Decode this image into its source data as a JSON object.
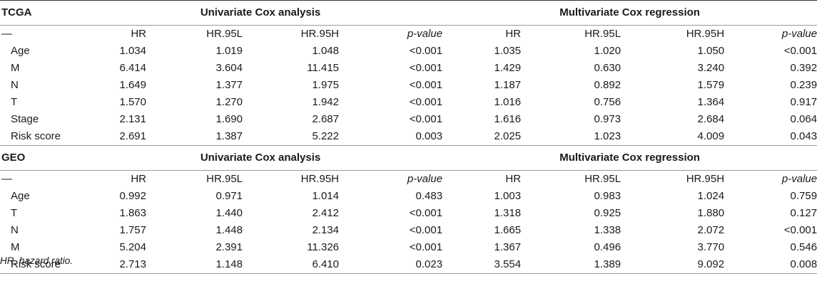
{
  "sections": [
    {
      "name": "TCGA",
      "group_left": "Univariate Cox analysis",
      "group_right": "Multivariate Cox regression",
      "header": [
        "—",
        "HR",
        "HR.95L",
        "HR.95H",
        "p-value",
        "HR",
        "HR.95L",
        "HR.95H",
        "p-value"
      ],
      "rows": [
        [
          "Age",
          "1.034",
          "1.019",
          "1.048",
          "<0.001",
          "1.035",
          "1.020",
          "1.050",
          "<0.001"
        ],
        [
          "M",
          "6.414",
          "3.604",
          "11.415",
          "<0.001",
          "1.429",
          "0.630",
          "3.240",
          "0.392"
        ],
        [
          "N",
          "1.649",
          "1.377",
          "1.975",
          "<0.001",
          "1.187",
          "0.892",
          "1.579",
          "0.239"
        ],
        [
          "T",
          "1.570",
          "1.270",
          "1.942",
          "<0.001",
          "1.016",
          "0.756",
          "1.364",
          "0.917"
        ],
        [
          "Stage",
          "2.131",
          "1.690",
          "2.687",
          "<0.001",
          "1.616",
          "0.973",
          "2.684",
          "0.064"
        ],
        [
          "Risk score",
          "2.691",
          "1.387",
          "5.222",
          "0.003",
          "2.025",
          "1.023",
          "4.009",
          "0.043"
        ]
      ]
    },
    {
      "name": "GEO",
      "group_left": "Univariate Cox analysis",
      "group_right": "Multivariate Cox regression",
      "header": [
        "—",
        "HR",
        "HR.95L",
        "HR.95H",
        "p-value",
        "HR",
        "HR.95L",
        "HR.95H",
        "p-value"
      ],
      "rows": [
        [
          "Age",
          "0.992",
          "0.971",
          "1.014",
          "0.483",
          "1.003",
          "0.983",
          "1.024",
          "0.759"
        ],
        [
          "T",
          "1.863",
          "1.440",
          "2.412",
          "<0.001",
          "1.318",
          "0.925",
          "1.880",
          "0.127"
        ],
        [
          "N",
          "1.757",
          "1.448",
          "2.134",
          "<0.001",
          "1.665",
          "1.338",
          "2.072",
          "<0.001"
        ],
        [
          "M",
          "5.204",
          "2.391",
          "11.326",
          "<0.001",
          "1.367",
          "0.496",
          "3.770",
          "0.546"
        ],
        [
          "Risk score",
          "2.713",
          "1.148",
          "6.410",
          "0.023",
          "3.554",
          "1.389",
          "9.092",
          "0.008"
        ]
      ]
    }
  ],
  "footnote": "HR, hazard ratio."
}
